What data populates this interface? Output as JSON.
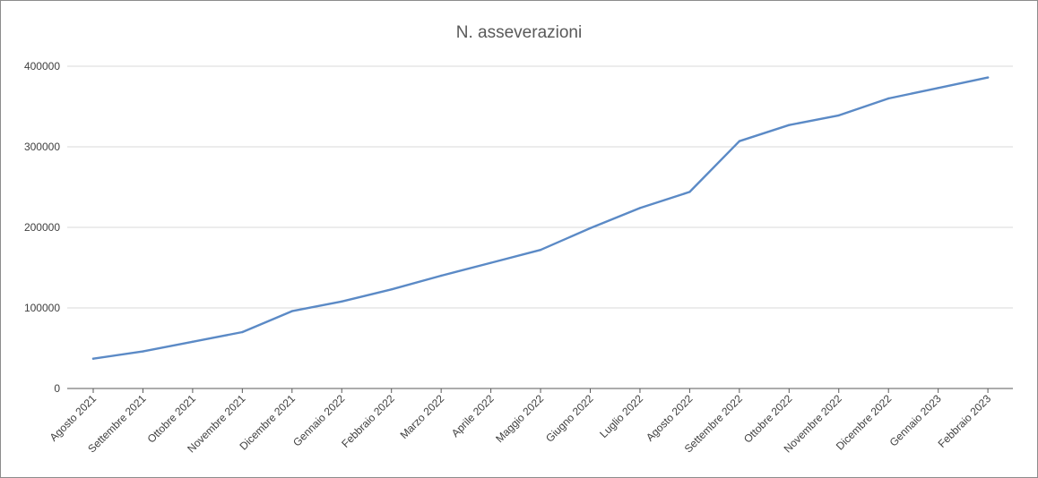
{
  "chart_data": {
    "type": "line",
    "title": "N. asseverazioni",
    "xlabel": "",
    "ylabel": "",
    "categories": [
      "Agosto 2021",
      "Settembre 2021",
      "Ottobre 2021",
      "Novembre 2021",
      "Dicembre 2021",
      "Gennaio 2022",
      "Febbraio 2022",
      "Marzo 2022",
      "Aprile 2022",
      "Maggio 2022",
      "Giugno 2022",
      "Luglio 2022",
      "Agosto 2022",
      "Settembre 2022",
      "Ottobre 2022",
      "Novembre 2022",
      "Dicembre 2022",
      "Gennaio 2023",
      "Febbraio 2023"
    ],
    "series": [
      {
        "values": [
          37000,
          46000,
          58000,
          70000,
          96000,
          108000,
          123000,
          140000,
          156000,
          172000,
          199000,
          224000,
          244000,
          307000,
          327000,
          339000,
          360000,
          373000,
          386000
        ]
      }
    ],
    "ylim": [
      0,
      400000
    ],
    "yticks": [
      0,
      100000,
      200000,
      300000,
      400000
    ],
    "grid": true,
    "legend": "none",
    "colors": {
      "line": "#5b8ac6",
      "grid": "#d9d9d9",
      "axis": "#595959"
    }
  }
}
